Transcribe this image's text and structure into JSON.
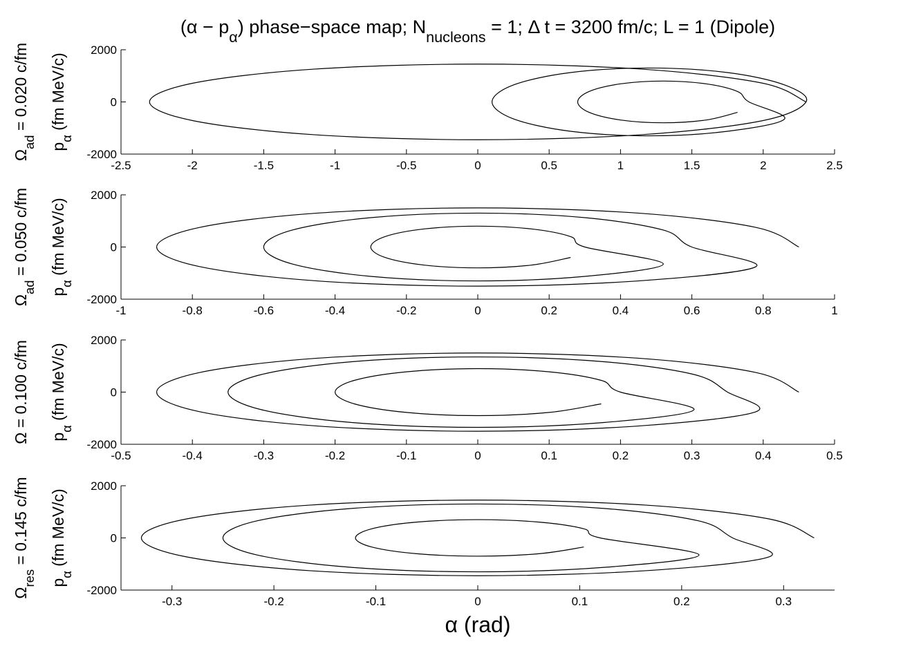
{
  "chart_data": [
    {
      "type": "line",
      "title_parts": [
        {
          "text": "(α − p"
        },
        {
          "text": "α",
          "sub": true
        },
        {
          "text": ") phase−space map; N"
        },
        {
          "text": "nucleons",
          "sub": true
        },
        {
          "text": " = 1; Δ t = 3200 fm/c; L = 1 (Dipole)"
        }
      ],
      "ylabel_outer": [
        {
          "text": "Ω"
        },
        {
          "text": "ad",
          "sub": true
        },
        {
          "text": " = 0.020 c/fm"
        }
      ],
      "ylabel": [
        {
          "text": "p"
        },
        {
          "text": "α",
          "sub": true
        },
        {
          "text": " (fm MeV/c)"
        }
      ],
      "xlim": [
        -2.5,
        2.5
      ],
      "xticks": [
        -2.5,
        -2,
        -1.5,
        -1,
        -0.5,
        0,
        0.5,
        1,
        1.5,
        2,
        2.5
      ],
      "ylim": [
        -2000,
        2000
      ],
      "yticks": [
        -2000,
        0,
        2000
      ],
      "series": [
        {
          "color": "#000000",
          "x": [
            2.3,
            1.99,
            1.15,
            0,
            -1.15,
            -1.99,
            -2.3,
            -1.99,
            -1.15,
            0,
            1.15,
            1.99,
            2.3,
            2.15,
            1.75,
            1.2,
            0.65,
            0.25,
            0.1,
            0.25,
            0.65,
            1.2,
            1.75,
            2.15,
            1.9,
            1.82,
            1.6,
            1.3,
            1.0,
            0.78,
            0.7,
            0.78,
            1.0,
            1.3,
            1.6,
            1.82
          ],
          "y": [
            0,
            725,
            1256,
            1450,
            1256,
            725,
            0,
            -725,
            -1256,
            -1450,
            -1256,
            -725,
            0,
            650,
            1126,
            1300,
            1126,
            650,
            0,
            -650,
            -1126,
            -1300,
            -1126,
            -650,
            0,
            400,
            693,
            800,
            693,
            400,
            0,
            -400,
            -693,
            -800,
            -693,
            -400
          ]
        }
      ]
    },
    {
      "type": "line",
      "ylabel_outer": [
        {
          "text": "Ω"
        },
        {
          "text": "ad",
          "sub": true
        },
        {
          "text": " = 0.050 c/fm"
        }
      ],
      "ylabel": [
        {
          "text": "p"
        },
        {
          "text": "α",
          "sub": true
        },
        {
          "text": " (fm MeV/c)"
        }
      ],
      "xlim": [
        -1,
        1
      ],
      "xticks": [
        -1,
        -0.8,
        -0.6,
        -0.4,
        -0.2,
        0,
        0.2,
        0.4,
        0.6,
        0.8,
        1
      ],
      "ylim": [
        -2000,
        2000
      ],
      "yticks": [
        -2000,
        0,
        2000
      ],
      "series": [
        {
          "color": "#000000",
          "x": [
            0.9,
            0.78,
            0.45,
            0,
            -0.45,
            -0.78,
            -0.9,
            -0.78,
            -0.45,
            0,
            0.45,
            0.78,
            0.6,
            0.52,
            0.3,
            0,
            -0.3,
            -0.52,
            -0.6,
            -0.52,
            -0.3,
            0,
            0.3,
            0.52,
            0.3,
            0.26,
            0.15,
            0,
            -0.15,
            -0.26,
            -0.3,
            -0.26,
            -0.15,
            0,
            0.15,
            0.26
          ],
          "y": [
            0,
            750,
            1299,
            1500,
            1299,
            750,
            0,
            -750,
            -1299,
            -1500,
            -1299,
            -750,
            0,
            650,
            1126,
            1300,
            1126,
            650,
            0,
            -650,
            -1126,
            -1300,
            -1126,
            -650,
            0,
            400,
            693,
            800,
            693,
            400,
            0,
            -400,
            -693,
            -800,
            -693,
            -400
          ]
        }
      ]
    },
    {
      "type": "line",
      "ylabel_outer": [
        {
          "text": "Ω = 0.100 c/fm"
        }
      ],
      "ylabel": [
        {
          "text": "p"
        },
        {
          "text": "α",
          "sub": true
        },
        {
          "text": " (fm MeV/c)"
        }
      ],
      "xlim": [
        -0.5,
        0.5
      ],
      "xticks": [
        -0.5,
        -0.4,
        -0.3,
        -0.2,
        -0.1,
        0,
        0.1,
        0.2,
        0.3,
        0.4,
        0.5
      ],
      "ylim": [
        -2000,
        2000
      ],
      "yticks": [
        -2000,
        0,
        2000
      ],
      "series": [
        {
          "color": "#000000",
          "x": [
            0.45,
            0.39,
            0.225,
            0,
            -0.225,
            -0.39,
            -0.45,
            -0.39,
            -0.225,
            0,
            0.225,
            0.39,
            0.35,
            0.303,
            0.175,
            0,
            -0.175,
            -0.303,
            -0.35,
            -0.303,
            -0.175,
            0,
            0.175,
            0.303,
            0.2,
            0.173,
            0.1,
            0,
            -0.1,
            -0.173,
            -0.2,
            -0.173,
            -0.1,
            0,
            0.1,
            0.173
          ],
          "y": [
            0,
            750,
            1299,
            1500,
            1299,
            750,
            0,
            -750,
            -1299,
            -1500,
            -1299,
            -750,
            0,
            675,
            1169,
            1350,
            1169,
            675,
            0,
            -675,
            -1169,
            -1350,
            -1169,
            -675,
            0,
            450,
            779,
            900,
            779,
            450,
            0,
            -450,
            -779,
            -900,
            -779,
            -450
          ]
        }
      ]
    },
    {
      "type": "line",
      "ylabel_outer": [
        {
          "text": "Ω"
        },
        {
          "text": "res",
          "sub": true
        },
        {
          "text": " = 0.145 c/fm"
        }
      ],
      "ylabel": [
        {
          "text": "p"
        },
        {
          "text": "α",
          "sub": true
        },
        {
          "text": " (fm MeV/c)"
        }
      ],
      "xlabel": "α (rad)",
      "xlim": [
        -0.35,
        0.35
      ],
      "xticks": [
        -0.3,
        -0.2,
        -0.1,
        0,
        0.1,
        0.2,
        0.3
      ],
      "ylim": [
        -2000,
        2000
      ],
      "yticks": [
        -2000,
        0,
        2000
      ],
      "series": [
        {
          "color": "#000000",
          "x": [
            0.33,
            0.286,
            0.165,
            0,
            -0.165,
            -0.286,
            -0.33,
            -0.286,
            -0.165,
            0,
            0.165,
            0.286,
            0.25,
            0.217,
            0.125,
            0,
            -0.125,
            -0.217,
            -0.25,
            -0.217,
            -0.125,
            0,
            0.125,
            0.217,
            0.12,
            0.104,
            0.06,
            0,
            -0.06,
            -0.104,
            -0.12,
            -0.104,
            -0.06,
            0,
            0.06,
            0.104
          ],
          "y": [
            0,
            725,
            1256,
            1450,
            1256,
            725,
            0,
            -725,
            -1256,
            -1450,
            -1256,
            -725,
            0,
            650,
            1126,
            1300,
            1126,
            650,
            0,
            -650,
            -1126,
            -1300,
            -1126,
            -650,
            0,
            350,
            606,
            700,
            606,
            350,
            0,
            -350,
            -606,
            -700,
            -606,
            -350
          ]
        }
      ]
    }
  ]
}
